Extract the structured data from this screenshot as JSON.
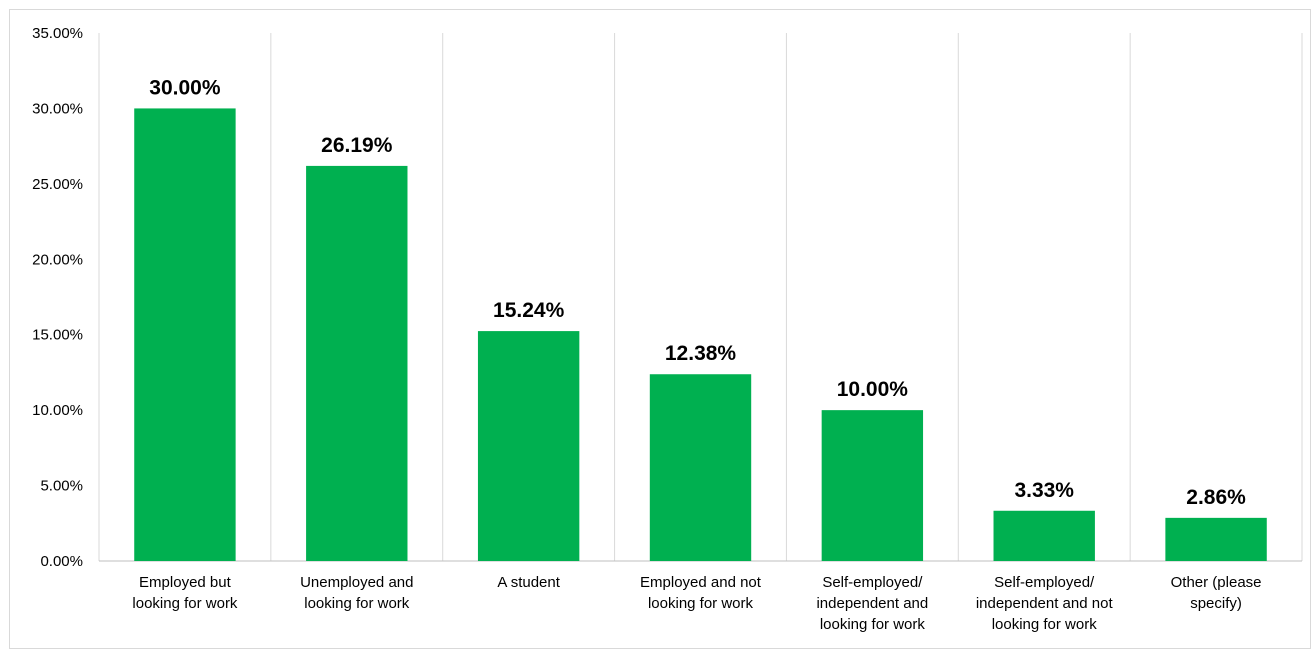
{
  "chart_data": {
    "type": "bar",
    "title": "",
    "xlabel": "",
    "ylabel": "",
    "ylim": [
      0,
      35
    ],
    "y_tick_values": [
      0,
      5,
      10,
      15,
      20,
      25,
      30,
      35
    ],
    "y_tick_labels": [
      "0.00%",
      "5.00%",
      "10.00%",
      "15.00%",
      "20.00%",
      "25.00%",
      "30.00%",
      "35.00%"
    ],
    "grid": "vertical separators between categories",
    "legend": "none",
    "bar_color": "#00b050",
    "categories": [
      [
        "Employed but",
        "looking for work"
      ],
      [
        "Unemployed and",
        "looking for work"
      ],
      [
        "A student"
      ],
      [
        "Employed and not",
        "looking for work"
      ],
      [
        "Self-employed/",
        "independent and",
        "looking for work"
      ],
      [
        "Self-employed/",
        "independent and not",
        "looking for work"
      ],
      [
        "Other (please",
        "specify)"
      ]
    ],
    "values": [
      30.0,
      26.19,
      15.24,
      12.38,
      10.0,
      3.33,
      2.86
    ],
    "data_labels": [
      "30.00%",
      "26.19%",
      "15.24%",
      "12.38%",
      "10.00%",
      "3.33%",
      "2.86%"
    ]
  }
}
